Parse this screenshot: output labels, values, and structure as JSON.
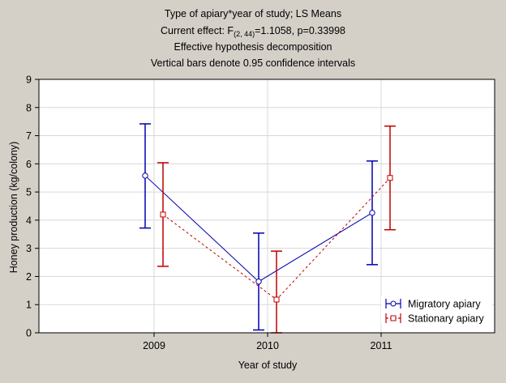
{
  "chart_data": {
    "type": "line",
    "title_lines": [
      "Type of apiary*year of study; LS Means",
      "Current effect: F",
      "Effective hypothesis decomposition",
      "Vertical bars denote 0.95 confidence intervals"
    ],
    "effect_subscript": "(2, 44)",
    "effect_suffix": "=1.1058, p=0.33998",
    "xlabel": "Year of study",
    "ylabel": "Honey production (kg/colony)",
    "categories": [
      "2009",
      "2010",
      "2011"
    ],
    "yticks": [
      "0",
      "1",
      "2",
      "3",
      "4",
      "5",
      "6",
      "7",
      "8",
      "9"
    ],
    "ylim": [
      0,
      9
    ],
    "grid": true,
    "legend_position": "bottom-right",
    "series": [
      {
        "name": "Migratory apiary",
        "color": "#0000b0",
        "marker": "circle",
        "line_style": "solid",
        "values": [
          5.58,
          1.82,
          4.26
        ],
        "ci_lower": [
          3.72,
          0.1,
          2.42
        ],
        "ci_upper": [
          7.42,
          3.54,
          6.1
        ]
      },
      {
        "name": "Stationary apiary",
        "color": "#c00000",
        "marker": "square",
        "line_style": "dashed",
        "values": [
          4.2,
          1.18,
          5.5
        ],
        "ci_lower": [
          2.36,
          0.0,
          3.66
        ],
        "ci_upper": [
          6.04,
          2.9,
          7.34
        ]
      }
    ]
  }
}
